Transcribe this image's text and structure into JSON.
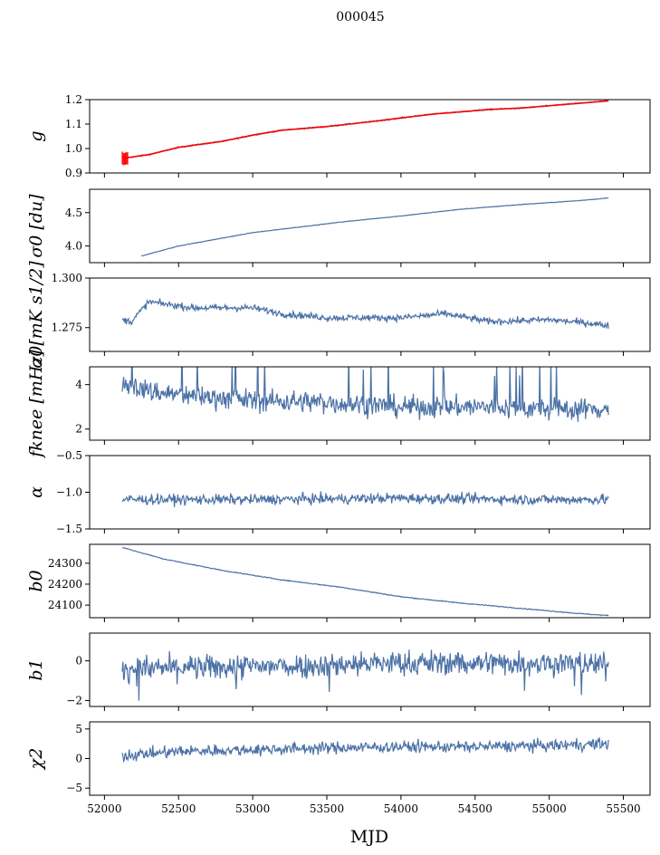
{
  "figure": {
    "title": "000045",
    "xlabel": "MJD",
    "line_color": "#4c72a6",
    "fit_color": "#ff0000"
  },
  "chart_data": [
    {
      "type": "line",
      "name": "g",
      "ylabel": "g",
      "xlim": [
        51900,
        55680
      ],
      "ylim": [
        0.9,
        1.2
      ],
      "yticks": [
        "0.9",
        "1.0",
        "1.1",
        "1.2"
      ],
      "ytick_values": [
        0.9,
        1.0,
        1.1,
        1.2
      ],
      "x": [
        52120,
        52300,
        52500,
        52800,
        53000,
        53200,
        53500,
        53800,
        54000,
        54200,
        54400,
        54600,
        54800,
        55000,
        55200,
        55400
      ],
      "y": [
        0.96,
        0.975,
        1.005,
        1.03,
        1.055,
        1.075,
        1.09,
        1.11,
        1.125,
        1.14,
        1.15,
        1.16,
        1.165,
        1.175,
        1.185,
        1.195
      ],
      "noise": 0.002,
      "overlay": {
        "color": "#ff0000",
        "note_spike_x": 52120,
        "spike_range": [
          0.93,
          0.99
        ]
      }
    },
    {
      "type": "line",
      "name": "sigma0_du",
      "ylabel": "σ0 [du]",
      "xlim": [
        51900,
        55680
      ],
      "ylim": [
        3.75,
        4.85
      ],
      "yticks": [
        "4.0",
        "4.5"
      ],
      "ytick_values": [
        4.0,
        4.5
      ],
      "x": [
        52250,
        52500,
        52800,
        53000,
        53300,
        53600,
        54000,
        54400,
        54800,
        55200,
        55400
      ],
      "y": [
        3.85,
        4.0,
        4.12,
        4.2,
        4.28,
        4.36,
        4.45,
        4.55,
        4.62,
        4.68,
        4.72
      ],
      "noise": 0.003
    },
    {
      "type": "line",
      "name": "sigma0_mK",
      "ylabel": "σ0[mK s1/2]",
      "xlim": [
        51900,
        55680
      ],
      "ylim": [
        1.263,
        1.3
      ],
      "yticks": [
        "1.275",
        "1.300"
      ],
      "ytick_values": [
        1.275,
        1.3
      ],
      "x": [
        52120,
        52180,
        52300,
        52600,
        53000,
        53200,
        53500,
        54000,
        54300,
        54600,
        55000,
        55300,
        55400
      ],
      "y": [
        1.279,
        1.278,
        1.288,
        1.285,
        1.285,
        1.282,
        1.28,
        1.28,
        1.282,
        1.278,
        1.279,
        1.277,
        1.276
      ],
      "noise": 0.0012
    },
    {
      "type": "line",
      "name": "fknee",
      "ylabel": "fknee [mHz]",
      "xlim": [
        51900,
        55680
      ],
      "ylim": [
        1.5,
        4.8
      ],
      "yticks": [
        "2",
        "4"
      ],
      "ytick_values": [
        2,
        4
      ],
      "x": [
        52120,
        52300,
        52600,
        53000,
        53500,
        54000,
        54500,
        55000,
        55400
      ],
      "y": [
        4.1,
        3.7,
        3.5,
        3.3,
        3.2,
        3.0,
        3.0,
        2.9,
        2.9
      ],
      "noise": 0.35
    },
    {
      "type": "line",
      "name": "alpha",
      "ylabel": "α",
      "xlim": [
        51900,
        55680
      ],
      "ylim": [
        -1.5,
        -0.5
      ],
      "yticks": [
        "−1.5",
        "−1.0",
        "−0.5"
      ],
      "ytick_values": [
        -1.5,
        -1.0,
        -0.5
      ],
      "x": [
        52120,
        53000,
        54000,
        55000,
        55400
      ],
      "y": [
        -1.1,
        -1.1,
        -1.08,
        -1.1,
        -1.1
      ],
      "noise": 0.05
    },
    {
      "type": "line",
      "name": "b0",
      "ylabel": "b0",
      "xlim": [
        51900,
        55680
      ],
      "ylim": [
        24040,
        24390
      ],
      "yticks": [
        "24100",
        "24200",
        "24300"
      ],
      "ytick_values": [
        24100,
        24200,
        24300
      ],
      "x": [
        52120,
        52400,
        52800,
        53200,
        53600,
        54000,
        54400,
        54800,
        55200,
        55400
      ],
      "y": [
        24375,
        24320,
        24265,
        24220,
        24185,
        24140,
        24110,
        24085,
        24060,
        24050
      ],
      "noise": 1.5
    },
    {
      "type": "line",
      "name": "b1",
      "ylabel": "b1",
      "xlim": [
        51900,
        55680
      ],
      "ylim": [
        -2.3,
        1.4
      ],
      "yticks": [
        "−2",
        "0"
      ],
      "ytick_values": [
        -2,
        0
      ],
      "x": [
        52120,
        53000,
        54000,
        55000,
        55400
      ],
      "y": [
        -0.4,
        -0.3,
        -0.1,
        -0.1,
        -0.2
      ],
      "noise": 0.45
    },
    {
      "type": "line",
      "name": "chi2",
      "ylabel": "χ2",
      "xlim": [
        51900,
        55680
      ],
      "ylim": [
        -6.2,
        6.2
      ],
      "yticks": [
        "−5",
        "0",
        "5"
      ],
      "ytick_values": [
        -5,
        0,
        5
      ],
      "xticks": [
        "52000",
        "52500",
        "53000",
        "53500",
        "54000",
        "54500",
        "55000",
        "55500"
      ],
      "xtick_values": [
        52000,
        52500,
        53000,
        53500,
        54000,
        54500,
        55000,
        55500
      ],
      "x": [
        52120,
        52500,
        53000,
        53500,
        54000,
        54500,
        55000,
        55400
      ],
      "y": [
        0.5,
        1.2,
        1.5,
        1.8,
        2.0,
        2.0,
        2.2,
        2.5
      ],
      "noise": 0.7
    }
  ]
}
